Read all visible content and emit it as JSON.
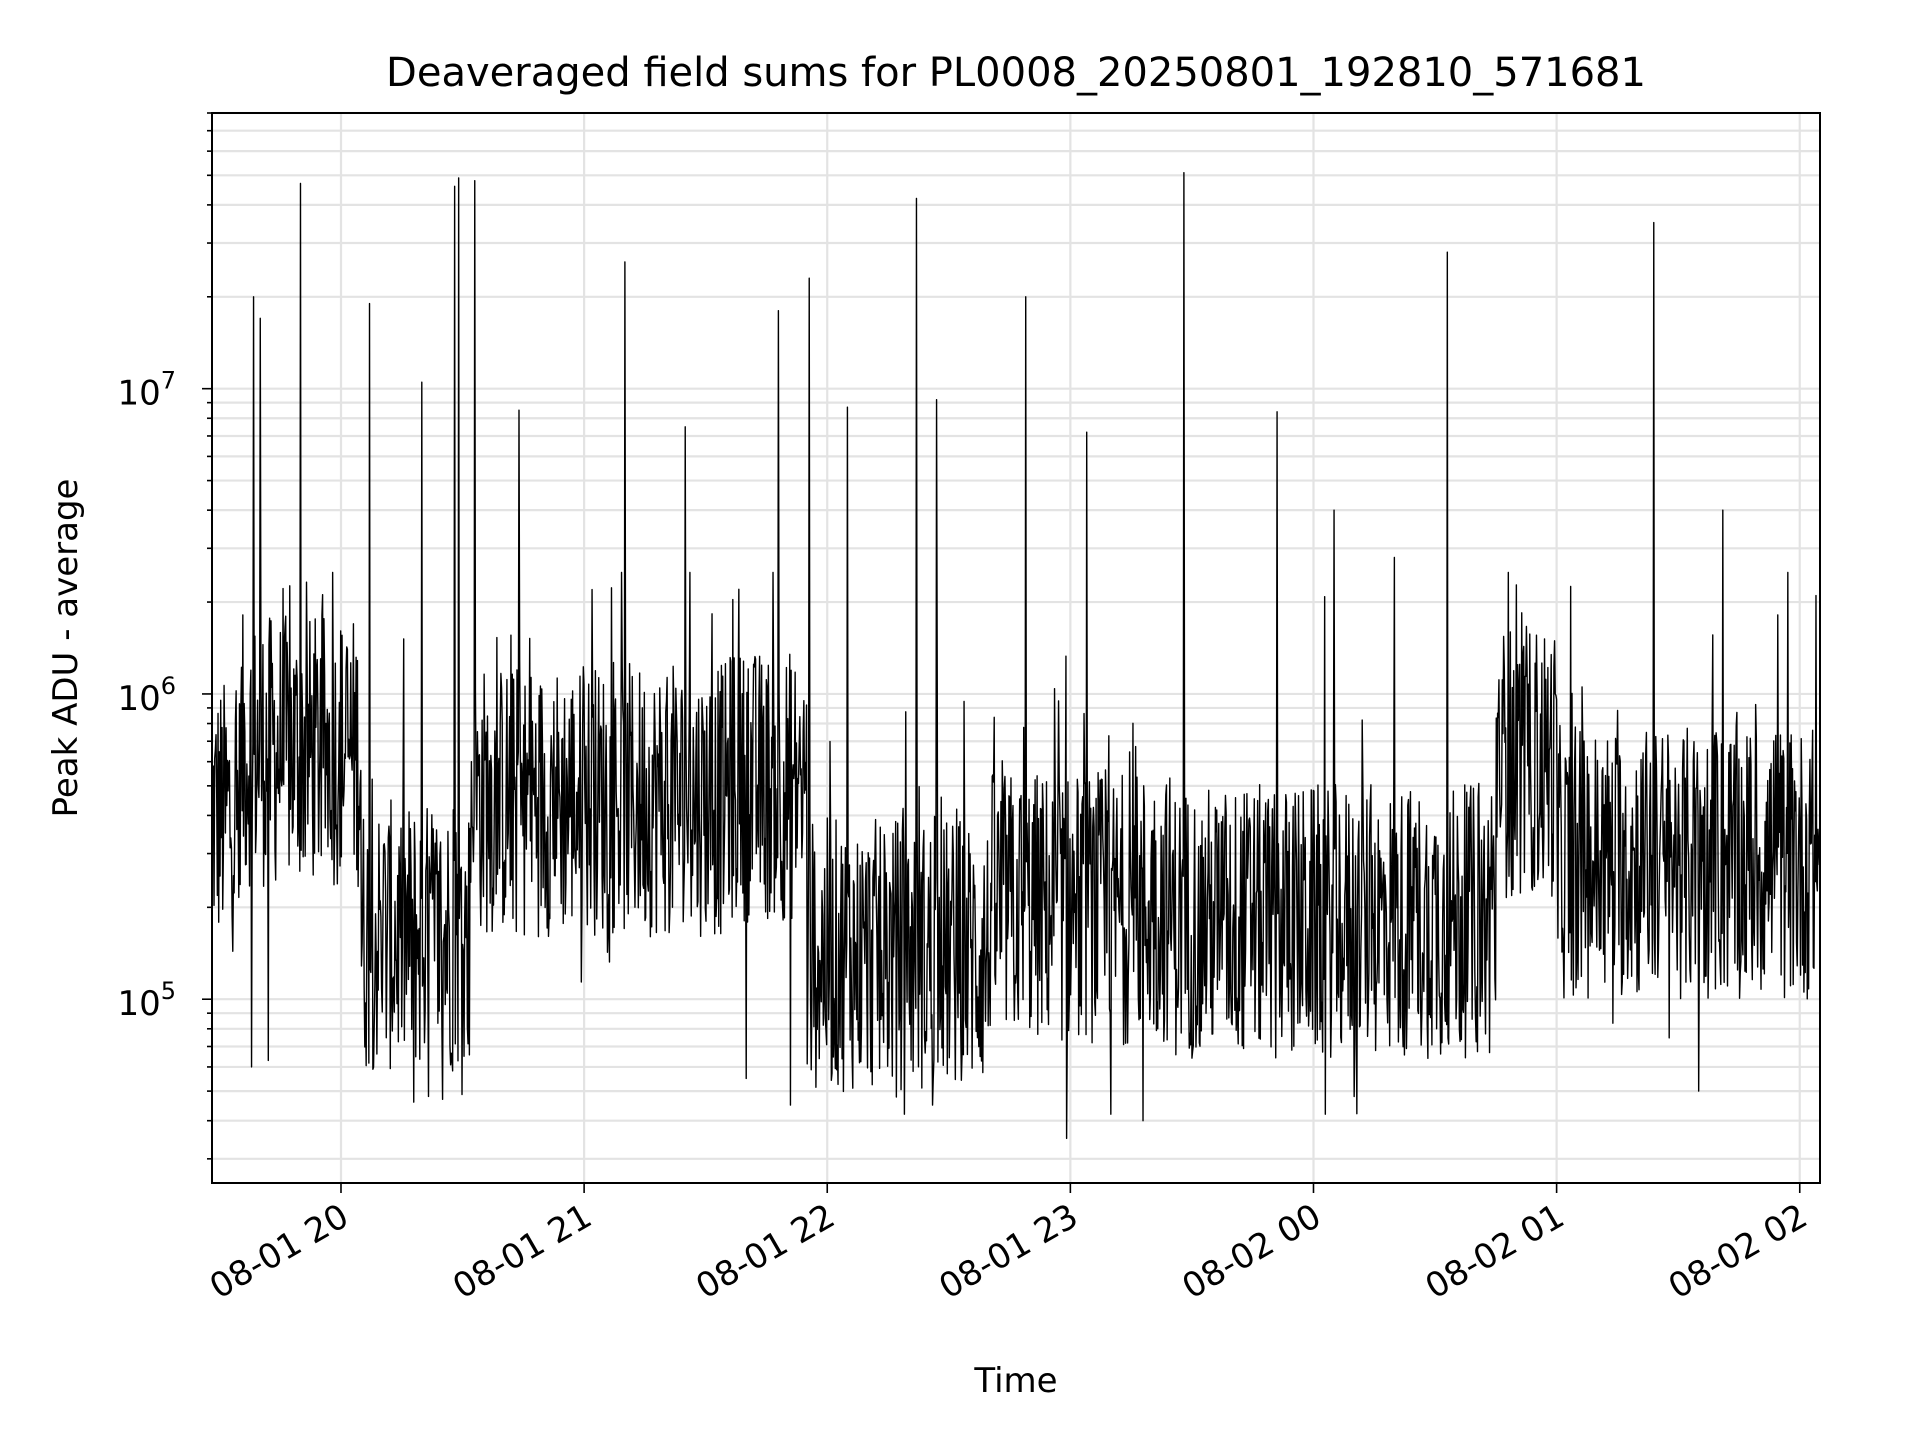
{
  "chart_data": {
    "type": "line",
    "title": "Deaveraged field sums for PL0008_20250801_192810_571681",
    "xlabel": "Time",
    "ylabel": "Peak ADU - average",
    "y_scale": "log",
    "ylim": [
      25000,
      80000000
    ],
    "xlim": [
      "2025-08-01T19:28:10",
      "2025-08-02T02:05:00"
    ],
    "grid": true,
    "legend": "none",
    "x_ticks": [
      {
        "t": "2025-08-01T20:00:00",
        "label": "08-01 20"
      },
      {
        "t": "2025-08-01T21:00:00",
        "label": "08-01 21"
      },
      {
        "t": "2025-08-01T22:00:00",
        "label": "08-01 22"
      },
      {
        "t": "2025-08-01T23:00:00",
        "label": "08-01 23"
      },
      {
        "t": "2025-08-02T00:00:00",
        "label": "08-02 00"
      },
      {
        "t": "2025-08-02T01:00:00",
        "label": "08-02 01"
      },
      {
        "t": "2025-08-02T02:00:00",
        "label": "08-02 02"
      }
    ],
    "y_ticks": [
      {
        "value": 100000,
        "base": "10",
        "exp": "5"
      },
      {
        "value": 1000000,
        "base": "10",
        "exp": "6"
      },
      {
        "value": 10000000,
        "base": "10",
        "exp": "7"
      }
    ],
    "series": [
      {
        "color": "#000000",
        "spikes": [
          {
            "t": "2025-08-01T19:38:30",
            "y": 20000000
          },
          {
            "t": "2025-08-01T19:40:00",
            "y": 17000000
          },
          {
            "t": "2025-08-01T19:50:00",
            "y": 47000000
          },
          {
            "t": "2025-08-01T20:07:00",
            "y": 19000000
          },
          {
            "t": "2025-08-01T20:20:00",
            "y": 10500000
          },
          {
            "t": "2025-08-01T20:28:00",
            "y": 46000000
          },
          {
            "t": "2025-08-01T20:29:00",
            "y": 49000000
          },
          {
            "t": "2025-08-01T20:33:00",
            "y": 48000000
          },
          {
            "t": "2025-08-01T20:44:00",
            "y": 8500000
          },
          {
            "t": "2025-08-01T21:10:00",
            "y": 26000000
          },
          {
            "t": "2025-08-01T21:25:00",
            "y": 7500000
          },
          {
            "t": "2025-08-01T21:48:00",
            "y": 18000000
          },
          {
            "t": "2025-08-01T21:55:30",
            "y": 23000000
          },
          {
            "t": "2025-08-01T22:05:00",
            "y": 8700000
          },
          {
            "t": "2025-08-01T22:22:00",
            "y": 42000000
          },
          {
            "t": "2025-08-01T22:27:00",
            "y": 9200000
          },
          {
            "t": "2025-08-01T22:49:00",
            "y": 20000000
          },
          {
            "t": "2025-08-01T23:04:00",
            "y": 7200000
          },
          {
            "t": "2025-08-01T23:28:00",
            "y": 51000000
          },
          {
            "t": "2025-08-01T23:51:00",
            "y": 8400000
          },
          {
            "t": "2025-08-02T00:05:00",
            "y": 4000000
          },
          {
            "t": "2025-08-02T00:20:00",
            "y": 2800000
          },
          {
            "t": "2025-08-02T00:33:00",
            "y": 28000000
          },
          {
            "t": "2025-08-02T00:48:00",
            "y": 2500000
          },
          {
            "t": "2025-08-02T01:24:00",
            "y": 35000000
          },
          {
            "t": "2025-08-02T01:41:00",
            "y": 4000000
          },
          {
            "t": "2025-08-02T02:04:00",
            "y": 2100000
          }
        ],
        "dips": [
          {
            "t": "2025-08-01T19:38:00",
            "y": 60000
          },
          {
            "t": "2025-08-01T19:42:00",
            "y": 63000
          },
          {
            "t": "2025-08-01T20:18:00",
            "y": 46000
          },
          {
            "t": "2025-08-01T20:25:00",
            "y": 47000
          },
          {
            "t": "2025-08-01T21:40:00",
            "y": 55000
          },
          {
            "t": "2025-08-01T21:51:00",
            "y": 45000
          },
          {
            "t": "2025-08-01T22:19:00",
            "y": 42000
          },
          {
            "t": "2025-08-01T22:26:00",
            "y": 45000
          },
          {
            "t": "2025-08-01T22:59:00",
            "y": 35000
          },
          {
            "t": "2025-08-01T23:10:00",
            "y": 42000
          },
          {
            "t": "2025-08-01T23:18:00",
            "y": 40000
          },
          {
            "t": "2025-08-02T00:03:00",
            "y": 42000
          },
          {
            "t": "2025-08-02T00:10:00",
            "y": 48000
          },
          {
            "t": "2025-08-02T01:35:00",
            "y": 50000
          }
        ],
        "baseline_segments": [
          {
            "t_start": "2025-08-01T19:28:10",
            "t_end": "2025-08-01T19:35:00",
            "center": 400000
          },
          {
            "t_start": "2025-08-01T19:35:00",
            "t_end": "2025-08-01T20:05:00",
            "center": 650000
          },
          {
            "t_start": "2025-08-01T20:05:00",
            "t_end": "2025-08-01T20:32:00",
            "center": 160000
          },
          {
            "t_start": "2025-08-01T20:32:00",
            "t_end": "2025-08-01T21:35:00",
            "center": 450000
          },
          {
            "t_start": "2025-08-01T21:35:00",
            "t_end": "2025-08-01T21:55:00",
            "center": 500000
          },
          {
            "t_start": "2025-08-01T21:55:00",
            "t_end": "2025-08-01T22:40:00",
            "center": 140000
          },
          {
            "t_start": "2025-08-01T22:40:00",
            "t_end": "2025-08-01T23:25:00",
            "center": 200000
          },
          {
            "t_start": "2025-08-01T23:25:00",
            "t_end": "2025-08-02T00:45:00",
            "center": 180000
          },
          {
            "t_start": "2025-08-02T00:45:00",
            "t_end": "2025-08-02T01:00:00",
            "center": 600000
          },
          {
            "t_start": "2025-08-02T01:00:00",
            "t_end": "2025-08-02T02:05:00",
            "center": 280000
          }
        ]
      }
    ]
  }
}
